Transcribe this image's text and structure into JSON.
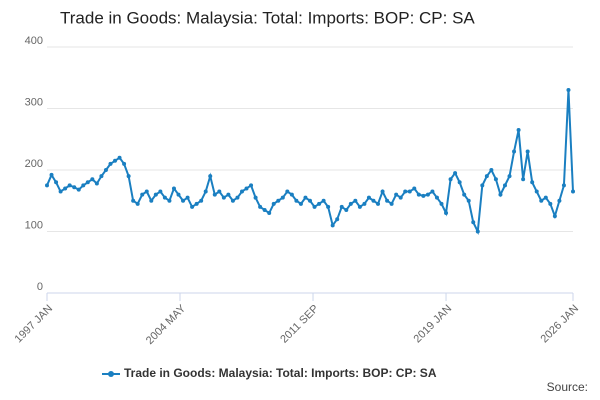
{
  "chart_data": {
    "type": "line",
    "title": "Trade in Goods: Malaysia: Total: Imports: BOP: CP: SA",
    "source": "Source:",
    "x": [
      "1997-01",
      "1997-04",
      "1997-07",
      "1997-10",
      "1998-01",
      "1998-04",
      "1998-07",
      "1998-10",
      "1999-01",
      "1999-04",
      "1999-07",
      "1999-10",
      "2000-01",
      "2000-04",
      "2000-07",
      "2000-10",
      "2001-01",
      "2001-04",
      "2001-07",
      "2001-10",
      "2002-01",
      "2002-04",
      "2002-07",
      "2002-10",
      "2003-01",
      "2003-04",
      "2003-07",
      "2003-10",
      "2004-01",
      "2004-04",
      "2004-07",
      "2004-10",
      "2005-01",
      "2005-04",
      "2005-07",
      "2005-10",
      "2006-01",
      "2006-04",
      "2006-07",
      "2006-10",
      "2007-01",
      "2007-04",
      "2007-07",
      "2007-10",
      "2008-01",
      "2008-04",
      "2008-07",
      "2008-10",
      "2009-01",
      "2009-04",
      "2009-07",
      "2009-10",
      "2010-01",
      "2010-04",
      "2010-07",
      "2010-10",
      "2011-01",
      "2011-04",
      "2011-07",
      "2011-10",
      "2012-01",
      "2012-04",
      "2012-07",
      "2012-10",
      "2013-01",
      "2013-04",
      "2013-07",
      "2013-10",
      "2014-01",
      "2014-04",
      "2014-07",
      "2014-10",
      "2015-01",
      "2015-04",
      "2015-07",
      "2015-10",
      "2016-01",
      "2016-04",
      "2016-07",
      "2016-10",
      "2017-01",
      "2017-04",
      "2017-07",
      "2017-10",
      "2018-01",
      "2018-04",
      "2018-07",
      "2018-10",
      "2019-01",
      "2019-04",
      "2019-07",
      "2019-10",
      "2020-01",
      "2020-04",
      "2020-07",
      "2020-10",
      "2021-01",
      "2021-04",
      "2021-07",
      "2021-10",
      "2022-01",
      "2022-04",
      "2022-07",
      "2022-10",
      "2023-01",
      "2023-04",
      "2023-07",
      "2023-10",
      "2024-01",
      "2024-04",
      "2024-07",
      "2024-10",
      "2025-01",
      "2025-04",
      "2025-07",
      "2025-10",
      "2026-01"
    ],
    "series": [
      {
        "name": "Trade in Goods: Malaysia: Total: Imports: BOP: CP: SA",
        "color": "#1a7fc1",
        "values": [
          175,
          192,
          180,
          165,
          170,
          175,
          172,
          168,
          175,
          180,
          185,
          178,
          190,
          200,
          210,
          215,
          220,
          210,
          190,
          150,
          145,
          160,
          165,
          150,
          160,
          165,
          155,
          150,
          170,
          160,
          150,
          155,
          140,
          145,
          150,
          165,
          190,
          160,
          165,
          155,
          160,
          150,
          155,
          165,
          170,
          175,
          155,
          140,
          135,
          130,
          145,
          150,
          155,
          165,
          160,
          150,
          145,
          155,
          150,
          140,
          145,
          150,
          140,
          110,
          120,
          140,
          135,
          145,
          150,
          140,
          145,
          155,
          150,
          145,
          165,
          150,
          145,
          160,
          155,
          165,
          165,
          170,
          160,
          158,
          160,
          165,
          155,
          145,
          130,
          185,
          195,
          180,
          160,
          150,
          115,
          100,
          175,
          190,
          200,
          185,
          160,
          175,
          190,
          230,
          265,
          185,
          230,
          180,
          165,
          150,
          155,
          145,
          125,
          150,
          175,
          330,
          165
        ]
      }
    ],
    "xlim": [
      "1997-01",
      "2026-01"
    ],
    "xticks": [
      {
        "value": "1997-01",
        "label": "1997 JAN"
      },
      {
        "value": "2004-05",
        "label": "2004 MAY"
      },
      {
        "value": "2011-09",
        "label": "2011 SEP"
      },
      {
        "value": "2019-01",
        "label": "2019 JAN"
      },
      {
        "value": "2026-01",
        "label": "2026 JAN"
      }
    ],
    "ylim": [
      0,
      400
    ],
    "yticks": [
      0,
      100,
      200,
      300,
      400
    ],
    "grid": true
  }
}
